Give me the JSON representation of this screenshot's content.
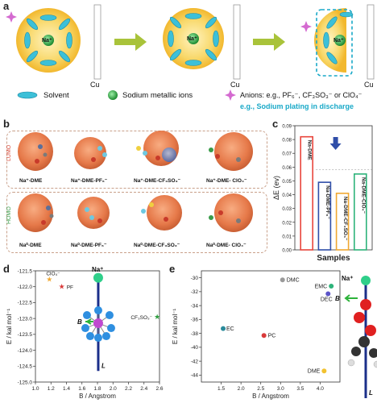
{
  "panel_a": {
    "label": "a",
    "ion_label": "Na⁺",
    "cu_labels": [
      "Cu",
      "Cu",
      "Cu"
    ],
    "legend": {
      "solvent": "Solvent",
      "sodium_ions": "Sodium metallic ions",
      "anions": "Anions: e.g., PF₆⁻, CF₃SO₃⁻ or ClO₄⁻",
      "plating": "e.g., Sodium plating in discharge"
    },
    "colors": {
      "sphere": "#f6c545",
      "solvent": "#3cc0d8",
      "na": "#2e9e3f",
      "anion": "#d46ad0",
      "arrow": "#a9c33a",
      "plating_text": "#19a9c8"
    }
  },
  "panel_b": {
    "label": "b",
    "lumo_label": "LUMO",
    "homo_label": "HOMO",
    "lumo_row": [
      "Na⁺-DME",
      "Na⁺-DME-PF₆⁻",
      "Na⁺-DME-CF₃SO₃⁻",
      "Na⁺-DME- ClO₄⁻"
    ],
    "homo_row": [
      "Na⁰-DME",
      "Na⁰-DME-PF₆⁻",
      "Na⁰-DME-CF₃SO₃⁻",
      "Na⁰-DME- ClO₄⁻"
    ]
  },
  "chart_data": [
    {
      "id": "c",
      "label": "c",
      "type": "bar",
      "categories": [
        "Na-DME",
        "Na-DME-PF₆⁻",
        "Na-DME-CF₃SO₃⁻",
        "Na-DME-ClO₄⁻"
      ],
      "values": [
        0.082,
        0.049,
        0.041,
        0.055
      ],
      "ylabel": "ΔE (ev)",
      "xlabel": "Samples",
      "ylim": [
        0.0,
        0.09
      ],
      "yticks": [
        "0.00",
        "0.01",
        "0.02",
        "0.03",
        "0.04",
        "0.05",
        "0.06",
        "0.07",
        "0.08",
        "0.09"
      ],
      "colors": [
        "#e8453c",
        "#2f4ea8",
        "#f0a832",
        "#2db37a"
      ]
    },
    {
      "id": "d",
      "label": "d",
      "type": "scatter",
      "xlabel": "B / Angstrom",
      "ylabel": "E / kal mol⁻¹",
      "xlim": [
        1.0,
        2.6
      ],
      "ylim": [
        -125.0,
        -121.5
      ],
      "xticks": [
        "1.0",
        "1.2",
        "1.4",
        "1.6",
        "1.8",
        "2.0",
        "2.2",
        "2.4",
        "2.6"
      ],
      "yticks": [
        "-121.5",
        "-122.0",
        "-122.5",
        "-123.0",
        "-123.5",
        "-124.0",
        "-124.5",
        "-125.0"
      ],
      "points": [
        {
          "name": "ClO₄⁻",
          "x": 1.18,
          "y": -121.77,
          "color": "#f0a832"
        },
        {
          "name": "PF",
          "x": 1.34,
          "y": -122.0,
          "color": "#d93a3a"
        },
        {
          "name": "CF₃SO₃⁻",
          "x": 2.57,
          "y": -122.95,
          "color": "#2e9e3f"
        }
      ],
      "annotations": {
        "ion": "Na⁺",
        "b": "B",
        "l": "L"
      }
    },
    {
      "id": "e",
      "label": "e",
      "type": "scatter",
      "xlabel": "B / Angstrom",
      "ylabel": "E / kal mol⁻¹",
      "xlim": [
        1.0,
        4.5
      ],
      "ylim": [
        -45,
        -29
      ],
      "xticks": [
        "1.5",
        "2.0",
        "2.5",
        "3.0",
        "3.5",
        "4.0"
      ],
      "yticks": [
        "-30",
        "-32",
        "-34",
        "-36",
        "-38",
        "-40",
        "-42",
        "-44"
      ],
      "points": [
        {
          "name": "DMC",
          "x": 3.05,
          "y": -30.3,
          "color": "#9a9a9a"
        },
        {
          "name": "EMC",
          "x": 4.28,
          "y": -31.2,
          "color": "#2db37a"
        },
        {
          "name": "DEC",
          "x": 4.2,
          "y": -32.3,
          "color": "#5b54c8"
        },
        {
          "name": "EC",
          "x": 1.55,
          "y": -37.3,
          "color": "#2a8a9a"
        },
        {
          "name": "PC",
          "x": 2.58,
          "y": -38.3,
          "color": "#d93a3a"
        },
        {
          "name": "DME",
          "x": 4.1,
          "y": -43.4,
          "color": "#f2c230"
        }
      ],
      "annotations": {
        "ion": "Na⁺",
        "b": "B",
        "l": "L"
      }
    }
  ]
}
